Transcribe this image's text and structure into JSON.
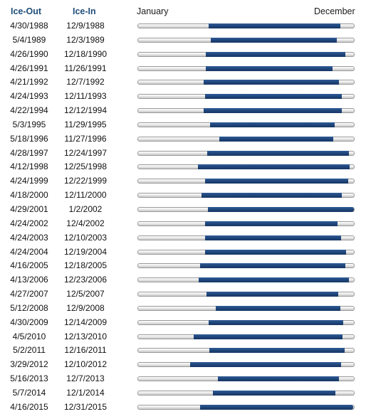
{
  "chart_data": {
    "type": "bar",
    "headers": {
      "ice_out": "Ice-Out",
      "ice_in": "Ice-In"
    },
    "axis_labels": {
      "start": "January",
      "end": "December"
    },
    "colors": {
      "bar": "#1f4478",
      "track": "#e4e4e4",
      "header": "#1f4e79"
    },
    "rows": [
      {
        "ice_out": "4/30/1988",
        "ice_in": "12/9/1988"
      },
      {
        "ice_out": "5/4/1989",
        "ice_in": "12/3/1989"
      },
      {
        "ice_out": "4/26/1990",
        "ice_in": "12/18/1990"
      },
      {
        "ice_out": "4/26/1991",
        "ice_in": "11/26/1991"
      },
      {
        "ice_out": "4/21/1992",
        "ice_in": "12/7/1992"
      },
      {
        "ice_out": "4/24/1993",
        "ice_in": "12/11/1993"
      },
      {
        "ice_out": "4/22/1994",
        "ice_in": "12/12/1994"
      },
      {
        "ice_out": "5/3/1995",
        "ice_in": "11/29/1995"
      },
      {
        "ice_out": "5/18/1996",
        "ice_in": "11/27/1996"
      },
      {
        "ice_out": "4/28/1997",
        "ice_in": "12/24/1997"
      },
      {
        "ice_out": "4/12/1998",
        "ice_in": "12/25/1998"
      },
      {
        "ice_out": "4/24/1999",
        "ice_in": "12/22/1999"
      },
      {
        "ice_out": "4/18/2000",
        "ice_in": "12/11/2000"
      },
      {
        "ice_out": "4/29/2001",
        "ice_in": "1/2/2002"
      },
      {
        "ice_out": "4/24/2002",
        "ice_in": "12/4/2002"
      },
      {
        "ice_out": "4/24/2003",
        "ice_in": "12/10/2003"
      },
      {
        "ice_out": "4/24/2004",
        "ice_in": "12/19/2004"
      },
      {
        "ice_out": "4/16/2005",
        "ice_in": "12/18/2005"
      },
      {
        "ice_out": "4/13/2006",
        "ice_in": "12/23/2006"
      },
      {
        "ice_out": "4/27/2007",
        "ice_in": "12/5/2007"
      },
      {
        "ice_out": "5/12/2008",
        "ice_in": "12/9/2008"
      },
      {
        "ice_out": "4/30/2009",
        "ice_in": "12/14/2009"
      },
      {
        "ice_out": "4/5/2010",
        "ice_in": "12/13/2010"
      },
      {
        "ice_out": "5/2/2011",
        "ice_in": "12/16/2011"
      },
      {
        "ice_out": "3/29/2012",
        "ice_in": "12/10/2012"
      },
      {
        "ice_out": "5/16/2013",
        "ice_in": "12/7/2013"
      },
      {
        "ice_out": "5/7/2014",
        "ice_in": "12/1/2014"
      },
      {
        "ice_out": "4/16/2015",
        "ice_in": "12/31/2015"
      }
    ]
  }
}
